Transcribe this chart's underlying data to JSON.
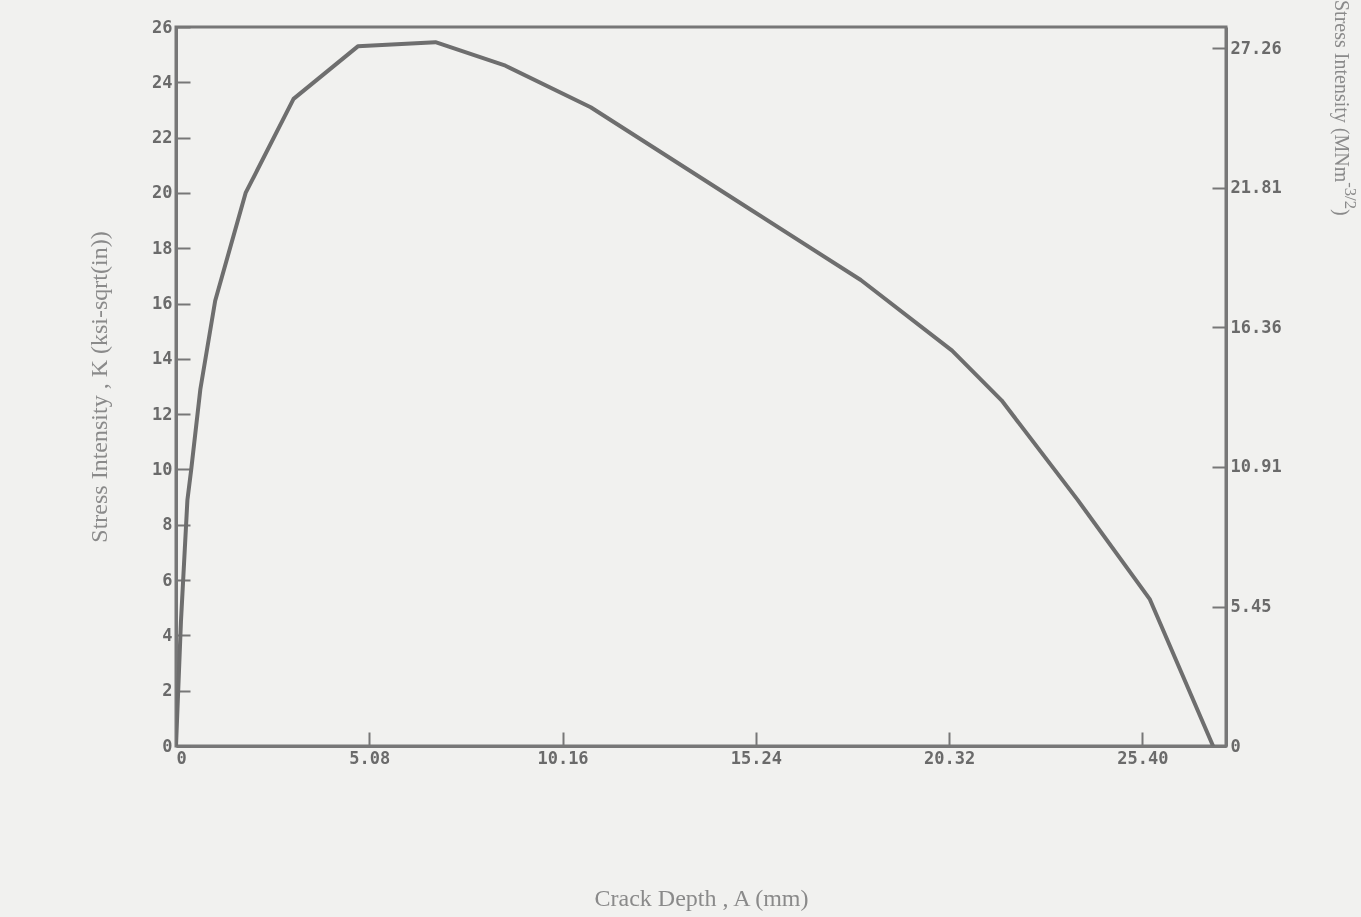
{
  "chart_data": {
    "type": "line",
    "xlabel": "Crack Depth , A (mm)",
    "ylabel": "Stress Intensity , K (ksi-sqrt(in))",
    "y2label": "Stress Intensity (MNm$^{-3/2}$)",
    "x": [
      0,
      0.13,
      0.3,
      0.4,
      0.64,
      1.03,
      1.83,
      3.09,
      4.78,
      6.82,
      8.66,
      10.9,
      15.1,
      18.0,
      20.4,
      21.7,
      23.7,
      25.6,
      27.26
    ],
    "series": [
      {
        "color": "#6e6e6e",
        "values": [
          0,
          4.5,
          8.9,
          10.0,
          12.9,
          16.1,
          20.0,
          23.4,
          25.3,
          25.45,
          24.6,
          23.1,
          19.4,
          16.85,
          14.3,
          12.5,
          8.9,
          5.3,
          0
        ]
      }
    ],
    "xlim": [
      0,
      27.6
    ],
    "xticks": [
      0,
      5.08,
      10.16,
      15.24,
      20.32,
      {
        "value": 25.4,
        "label": "25.40"
      }
    ],
    "ylim": [
      0,
      26
    ],
    "yticks": [
      0,
      2,
      4,
      6,
      8,
      10,
      12,
      14,
      16,
      18,
      20,
      22,
      24,
      26
    ],
    "y2lim": [
      0,
      28.1
    ],
    "y2ticks": [
      0,
      5.45,
      10.91,
      16.36,
      21.81,
      27.26
    ],
    "grid": false,
    "marker": "none",
    "line_style": "solid"
  }
}
